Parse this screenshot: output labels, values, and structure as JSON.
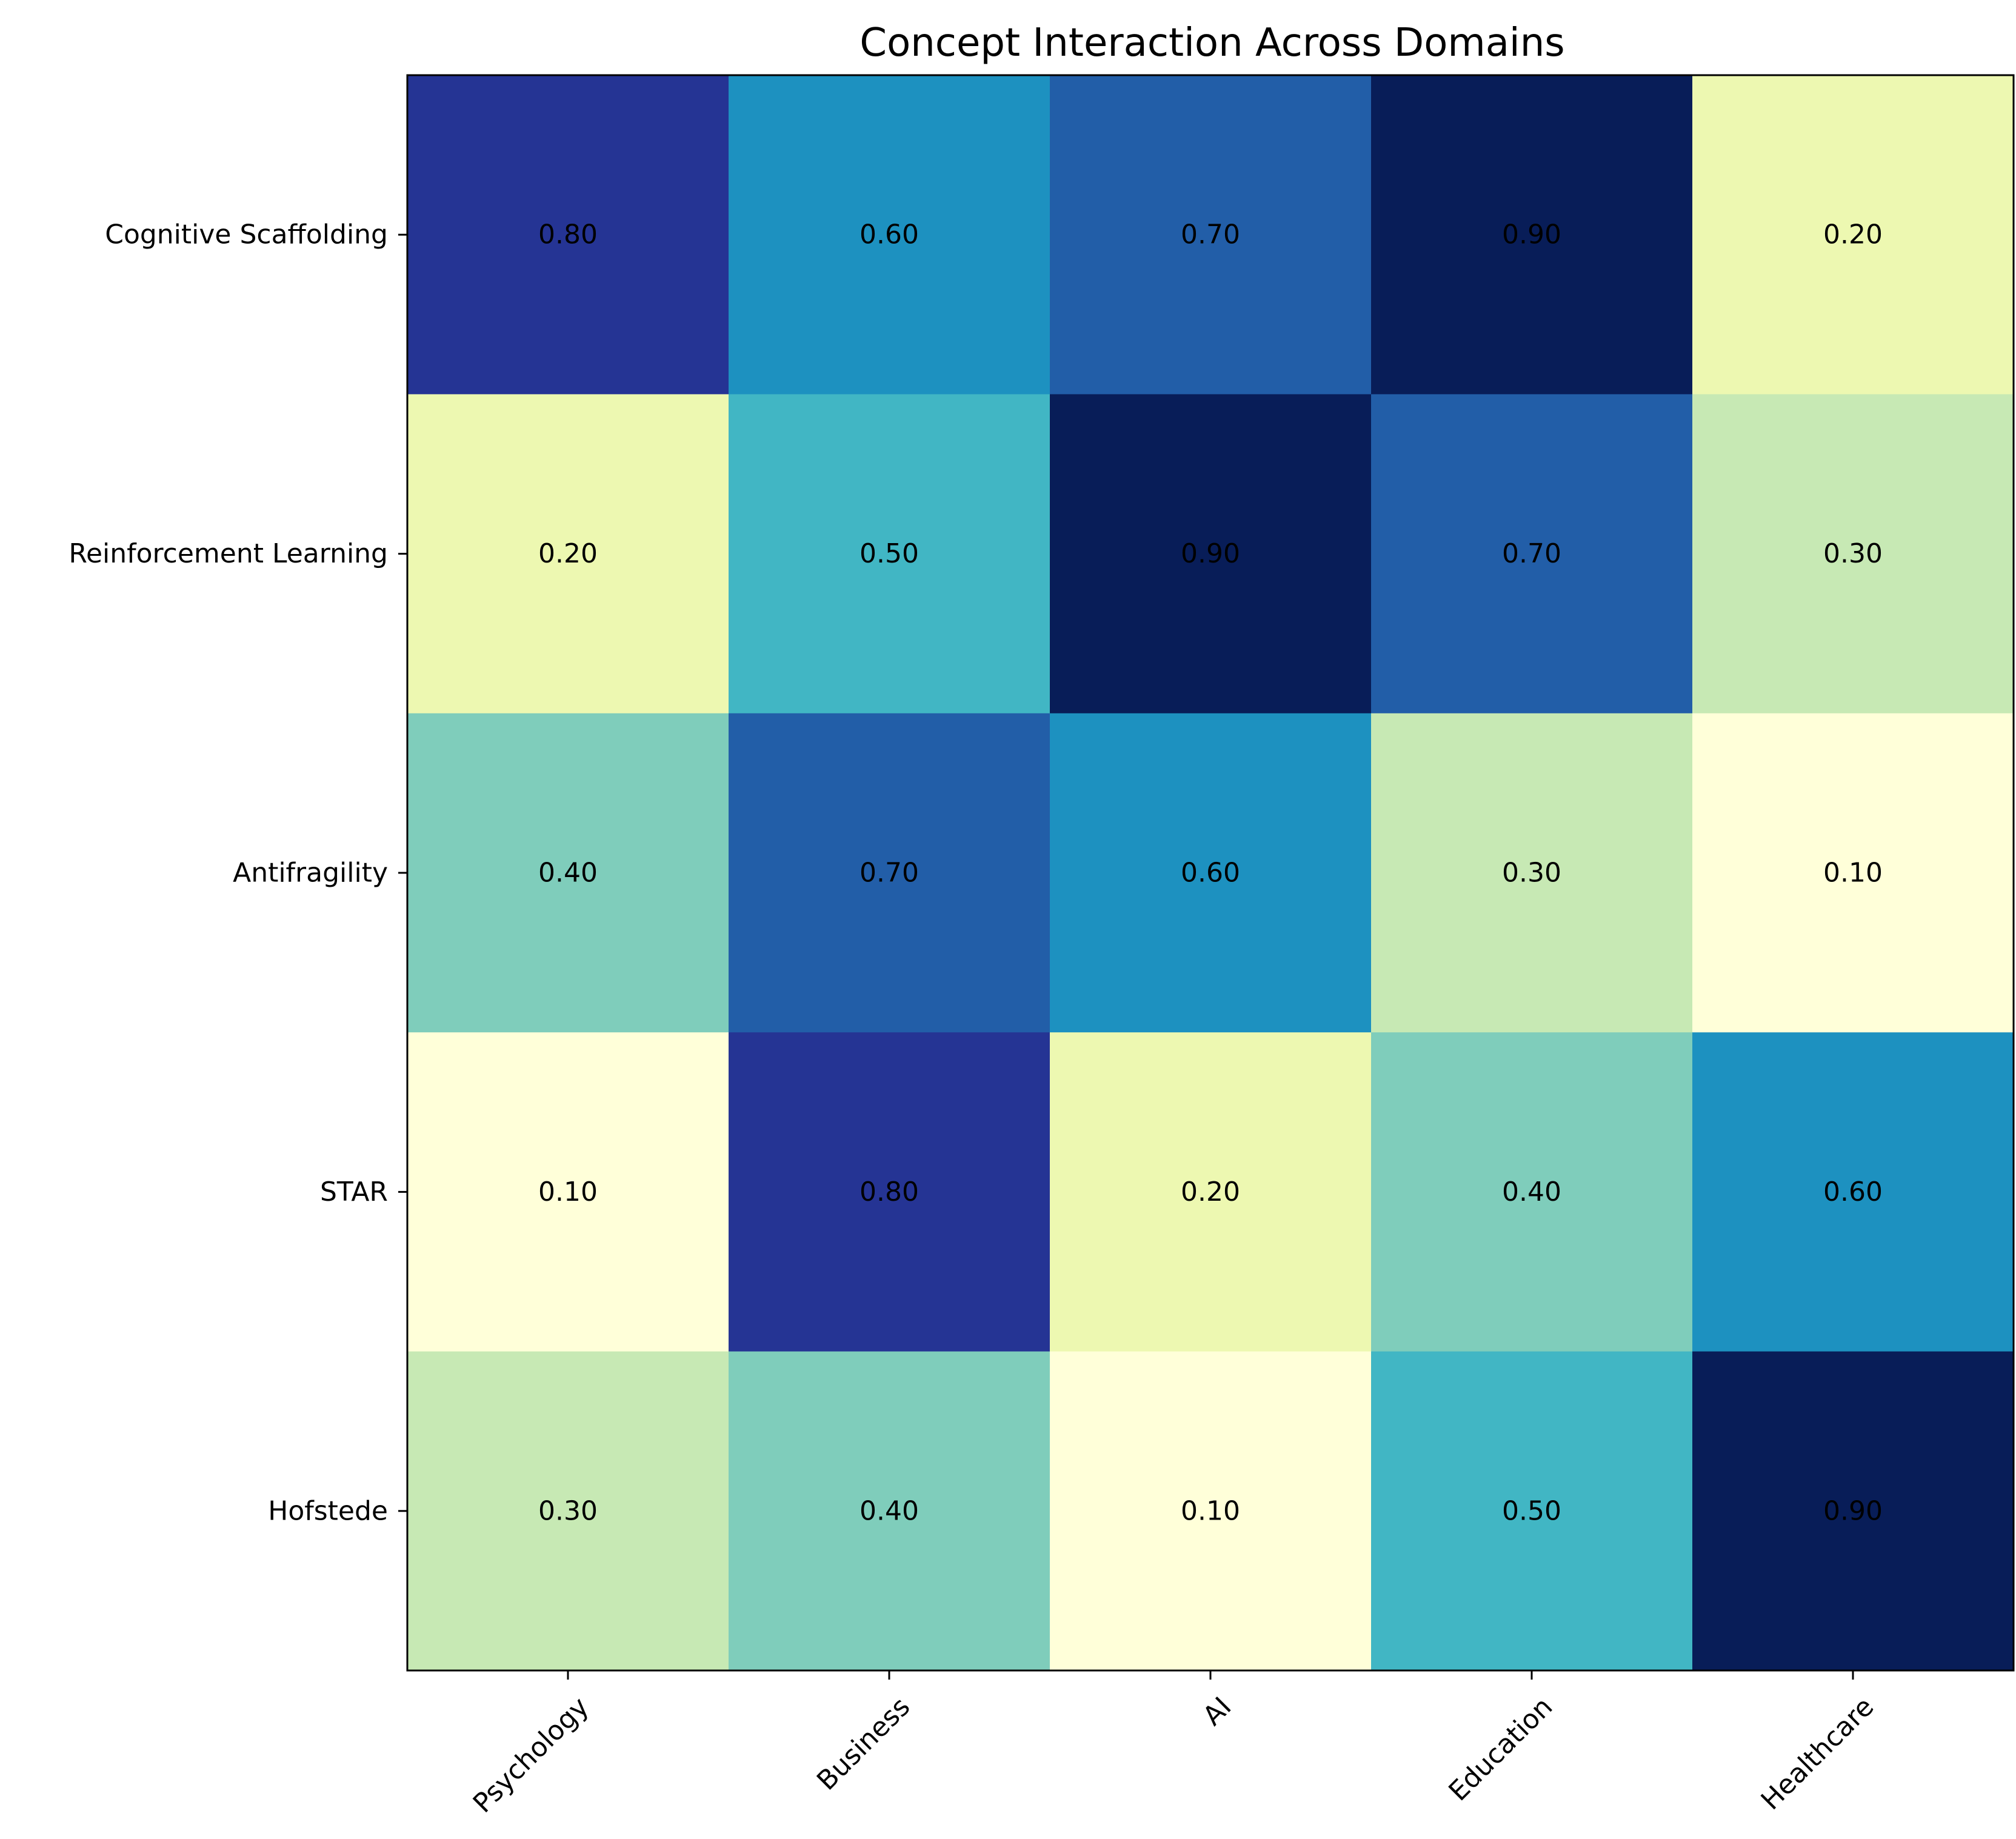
{
  "chart_data": {
    "type": "heatmap",
    "title": "Concept Interaction Across Domains",
    "xlabel": "",
    "ylabel": "",
    "x_categories": [
      "Psychology",
      "Business",
      "AI",
      "Education",
      "Healthcare"
    ],
    "y_categories": [
      "Cognitive Scaffolding",
      "Reinforcement Learning",
      "Antifragility",
      "STAR",
      "Hofstede"
    ],
    "values": [
      [
        0.8,
        0.6,
        0.7,
        0.9,
        0.2
      ],
      [
        0.2,
        0.5,
        0.9,
        0.7,
        0.3
      ],
      [
        0.4,
        0.7,
        0.6,
        0.3,
        0.1
      ],
      [
        0.1,
        0.8,
        0.2,
        0.4,
        0.6
      ],
      [
        0.3,
        0.4,
        0.1,
        0.5,
        0.9
      ]
    ],
    "cell_labels": [
      [
        "0.80",
        "0.60",
        "0.70",
        "0.90",
        "0.20"
      ],
      [
        "0.20",
        "0.50",
        "0.90",
        "0.70",
        "0.30"
      ],
      [
        "0.40",
        "0.70",
        "0.60",
        "0.30",
        "0.10"
      ],
      [
        "0.10",
        "0.80",
        "0.20",
        "0.40",
        "0.60"
      ],
      [
        "0.30",
        "0.40",
        "0.10",
        "0.50",
        "0.90"
      ]
    ],
    "value_range": [
      0.1,
      0.9
    ],
    "colormap": "YlGnBu",
    "colorbar": false,
    "grid": false
  }
}
